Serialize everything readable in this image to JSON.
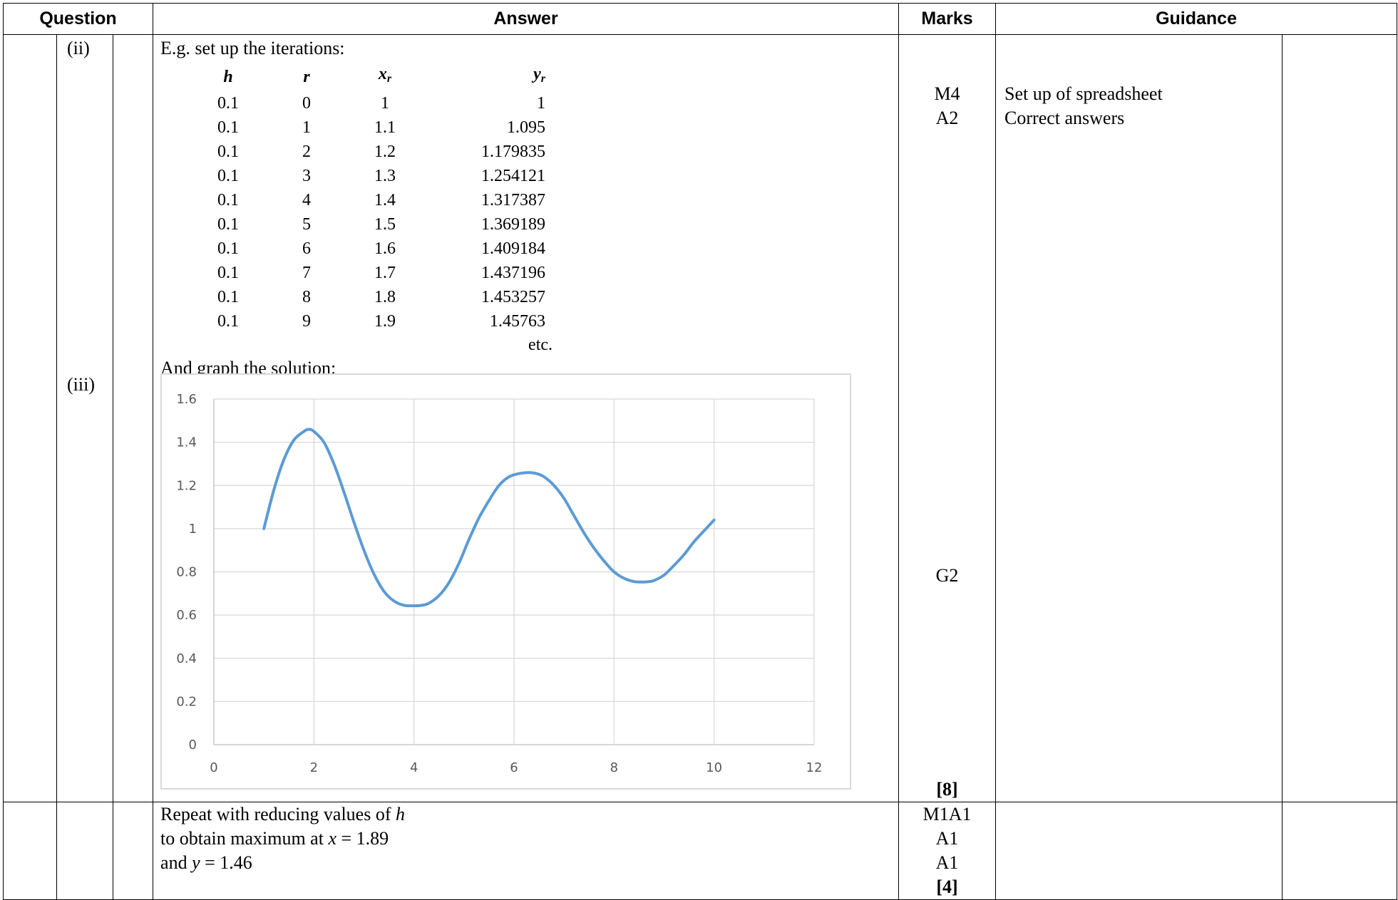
{
  "headers": {
    "question": "Question",
    "answer": "Answer",
    "marks": "Marks",
    "guidance": "Guidance"
  },
  "row1": {
    "part_ii": "(ii)",
    "part_iii": "(iii)",
    "intro": "E.g. set up the iterations:",
    "iter_headers": {
      "h": "h",
      "r": "r",
      "x": "x",
      "x_sub": "r",
      "y": "y",
      "y_sub": "r"
    },
    "iterations": [
      [
        "0.1",
        "0",
        "1",
        "1"
      ],
      [
        "0.1",
        "1",
        "1.1",
        "1.095"
      ],
      [
        "0.1",
        "2",
        "1.2",
        "1.179835"
      ],
      [
        "0.1",
        "3",
        "1.3",
        "1.254121"
      ],
      [
        "0.1",
        "4",
        "1.4",
        "1.317387"
      ],
      [
        "0.1",
        "5",
        "1.5",
        "1.369189"
      ],
      [
        "0.1",
        "6",
        "1.6",
        "1.409184"
      ],
      [
        "0.1",
        "7",
        "1.7",
        "1.437196"
      ],
      [
        "0.1",
        "8",
        "1.8",
        "1.453257"
      ],
      [
        "0.1",
        "9",
        "1.9",
        "1.45763"
      ]
    ],
    "etc": "etc.",
    "graph_intro": "And graph the solution:",
    "marks_m4": "M4",
    "marks_a2": "A2",
    "marks_g2": "G2",
    "marks_total": "[8]",
    "guidance_1": "Set up of spreadsheet",
    "guidance_2": "Correct answers"
  },
  "row2": {
    "line1_text": "Repeat with reducing values of ",
    "line1_var": "h",
    "line2_pre": "to obtain maximum at ",
    "line2_var": "x",
    "line2_post": " = 1.89",
    "line3_pre": "and ",
    "line3_var": "y",
    "line3_post": " = 1.46",
    "marks": [
      "M1A1",
      "A1",
      "A1"
    ],
    "marks_total": "[4]"
  },
  "chart_data": {
    "type": "line",
    "x": [
      1.0,
      1.2,
      1.4,
      1.6,
      1.8,
      1.9,
      2.0,
      2.2,
      2.4,
      2.6,
      2.8,
      3.0,
      3.2,
      3.4,
      3.6,
      3.8,
      4.0,
      4.15,
      4.3,
      4.5,
      4.7,
      4.9,
      5.1,
      5.3,
      5.5,
      5.7,
      5.9,
      6.1,
      6.3,
      6.45,
      6.6,
      6.8,
      7.0,
      7.2,
      7.4,
      7.6,
      7.8,
      8.0,
      8.2,
      8.4,
      8.6,
      8.7,
      8.8,
      9.0,
      9.2,
      9.4,
      9.6,
      9.8,
      10.0
    ],
    "series": [
      {
        "values": [
          1.0,
          1.18,
          1.32,
          1.41,
          1.45,
          1.46,
          1.45,
          1.4,
          1.3,
          1.17,
          1.03,
          0.9,
          0.79,
          0.71,
          0.665,
          0.645,
          0.643,
          0.645,
          0.655,
          0.69,
          0.75,
          0.84,
          0.95,
          1.05,
          1.13,
          1.2,
          1.24,
          1.255,
          1.26,
          1.255,
          1.24,
          1.2,
          1.14,
          1.06,
          0.98,
          0.91,
          0.85,
          0.8,
          0.77,
          0.755,
          0.753,
          0.755,
          0.76,
          0.785,
          0.83,
          0.88,
          0.94,
          0.99,
          1.04
        ]
      }
    ],
    "xlim": [
      0,
      12
    ],
    "ylim": [
      0,
      1.6
    ],
    "x_ticks": [
      "0",
      "2",
      "4",
      "6",
      "8",
      "10",
      "12"
    ],
    "y_ticks": [
      "0",
      "0.2",
      "0.4",
      "0.6",
      "0.8",
      "1",
      "1.2",
      "1.4",
      "1.6"
    ],
    "x_tick_values": [
      0,
      2,
      4,
      6,
      8,
      10,
      12
    ],
    "y_tick_values": [
      0,
      0.2,
      0.4,
      0.6,
      0.8,
      1,
      1.2,
      1.4,
      1.6
    ],
    "grid": true,
    "line_color": "#5b9bd5",
    "grid_color": "#d9d9d9",
    "axis_color": "#bfbfbf"
  }
}
